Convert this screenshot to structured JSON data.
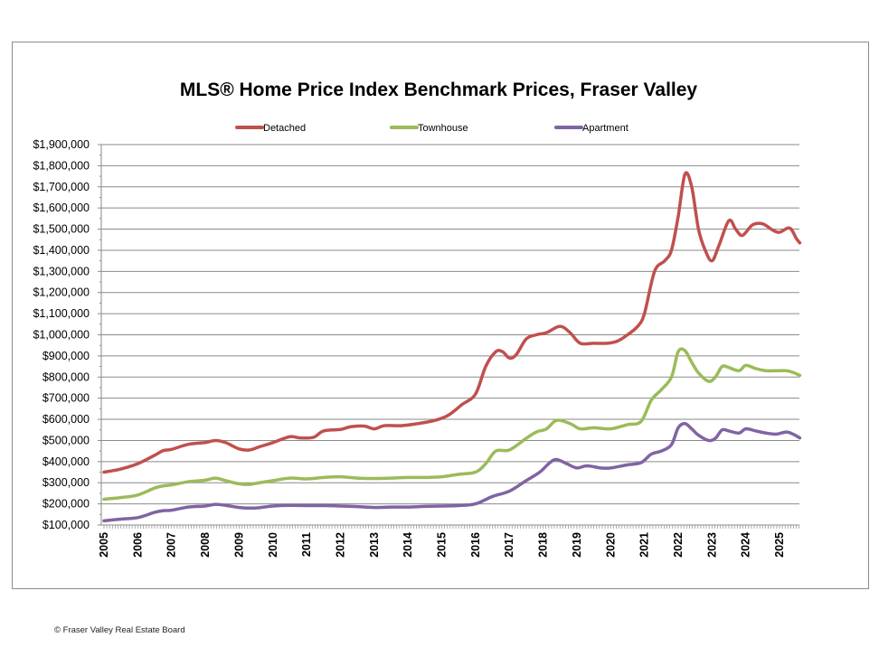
{
  "footer": {
    "copyright": "© Fraser Valley Real Estate Board"
  },
  "chart_data": {
    "type": "line",
    "title": "MLS® Home Price Index Benchmark Prices, Fraser Valley",
    "xlabel": "",
    "ylabel": "",
    "ylim": [
      100000,
      1900000
    ],
    "xlim": [
      2005,
      2025.6
    ],
    "grid": true,
    "legend_position": "top-center",
    "y_ticks": [
      100000,
      200000,
      300000,
      400000,
      500000,
      600000,
      700000,
      800000,
      900000,
      1000000,
      1100000,
      1200000,
      1300000,
      1400000,
      1500000,
      1600000,
      1700000,
      1800000,
      1900000
    ],
    "y_tick_labels": [
      "$100,000",
      "$200,000",
      "$300,000",
      "$400,000",
      "$500,000",
      "$600,000",
      "$700,000",
      "$800,000",
      "$900,000",
      "$1,000,000",
      "$1,100,000",
      "$1,200,000",
      "$1,300,000",
      "$1,400,000",
      "$1,500,000",
      "$1,600,000",
      "$1,700,000",
      "$1,800,000",
      "$1,900,000"
    ],
    "x_ticks": [
      2005,
      2006,
      2007,
      2008,
      2009,
      2010,
      2011,
      2012,
      2013,
      2014,
      2015,
      2016,
      2017,
      2018,
      2019,
      2020,
      2021,
      2022,
      2023,
      2024,
      2025
    ],
    "x_tick_labels": [
      "2005",
      "2006",
      "2007",
      "2008",
      "2009",
      "2010",
      "2011",
      "2012",
      "2013",
      "2014",
      "2015",
      "2016",
      "2017",
      "2018",
      "2019",
      "2020",
      "2021",
      "2022",
      "2023",
      "2024",
      "2025"
    ],
    "series": [
      {
        "name": "Detached",
        "color": "#c0504d",
        "x": [
          2005.0,
          2005.5,
          2006.0,
          2006.5,
          2006.75,
          2007.0,
          2007.5,
          2008.0,
          2008.3,
          2008.6,
          2009.0,
          2009.3,
          2009.6,
          2010.0,
          2010.5,
          2010.8,
          2011.2,
          2011.5,
          2012.0,
          2012.3,
          2012.7,
          2013.0,
          2013.3,
          2013.8,
          2014.3,
          2014.8,
          2015.2,
          2015.6,
          2016.0,
          2016.3,
          2016.6,
          2016.8,
          2017.0,
          2017.2,
          2017.5,
          2017.8,
          2018.1,
          2018.5,
          2018.8,
          2019.1,
          2019.5,
          2019.9,
          2020.2,
          2020.5,
          2020.8,
          2021.0,
          2021.3,
          2021.6,
          2021.8,
          2022.0,
          2022.2,
          2022.4,
          2022.6,
          2022.8,
          2023.0,
          2023.2,
          2023.5,
          2023.7,
          2023.9,
          2024.2,
          2024.5,
          2024.8,
          2025.0,
          2025.3,
          2025.5,
          2025.6
        ],
        "values": [
          350000,
          365000,
          390000,
          430000,
          452000,
          458000,
          482000,
          490000,
          500000,
          490000,
          460000,
          455000,
          470000,
          490000,
          518000,
          512000,
          515000,
          545000,
          552000,
          565000,
          568000,
          555000,
          570000,
          570000,
          580000,
          595000,
          620000,
          670000,
          720000,
          850000,
          920000,
          920000,
          890000,
          905000,
          980000,
          1000000,
          1010000,
          1040000,
          1010000,
          960000,
          960000,
          960000,
          970000,
          1000000,
          1040000,
          1100000,
          1300000,
          1350000,
          1400000,
          1560000,
          1760000,
          1700000,
          1500000,
          1400000,
          1350000,
          1420000,
          1540000,
          1500000,
          1470000,
          1520000,
          1525000,
          1495000,
          1485000,
          1505000,
          1455000,
          1435000
        ]
      },
      {
        "name": "Townhouse",
        "color": "#9bbb59",
        "x": [
          2005.0,
          2005.5,
          2006.0,
          2006.5,
          2006.75,
          2007.0,
          2007.5,
          2008.0,
          2008.3,
          2008.6,
          2009.0,
          2009.3,
          2009.6,
          2010.0,
          2010.5,
          2011.0,
          2011.5,
          2012.0,
          2012.5,
          2013.0,
          2013.5,
          2014.0,
          2014.5,
          2015.0,
          2015.5,
          2016.0,
          2016.3,
          2016.6,
          2017.0,
          2017.5,
          2017.8,
          2018.1,
          2018.4,
          2018.8,
          2019.1,
          2019.5,
          2020.0,
          2020.5,
          2020.9,
          2021.2,
          2021.5,
          2021.8,
          2022.0,
          2022.2,
          2022.4,
          2022.6,
          2022.9,
          2023.1,
          2023.3,
          2023.5,
          2023.8,
          2024.0,
          2024.3,
          2024.6,
          2024.9,
          2025.2,
          2025.4,
          2025.6
        ],
        "values": [
          222000,
          230000,
          242000,
          275000,
          285000,
          290000,
          305000,
          312000,
          322000,
          310000,
          295000,
          292000,
          300000,
          310000,
          322000,
          318000,
          325000,
          328000,
          322000,
          320000,
          322000,
          325000,
          325000,
          328000,
          340000,
          350000,
          390000,
          450000,
          455000,
          510000,
          540000,
          555000,
          595000,
          580000,
          555000,
          560000,
          555000,
          575000,
          590000,
          690000,
          740000,
          800000,
          920000,
          925000,
          870000,
          820000,
          780000,
          800000,
          850000,
          845000,
          830000,
          855000,
          840000,
          830000,
          830000,
          830000,
          822000,
          808000
        ]
      },
      {
        "name": "Apartment",
        "color": "#8064a2",
        "x": [
          2005.0,
          2005.5,
          2006.0,
          2006.5,
          2006.75,
          2007.0,
          2007.5,
          2008.0,
          2008.3,
          2008.6,
          2009.0,
          2009.3,
          2009.6,
          2010.0,
          2010.5,
          2011.0,
          2011.5,
          2012.0,
          2012.5,
          2013.0,
          2013.5,
          2014.0,
          2014.5,
          2015.0,
          2015.5,
          2016.0,
          2016.5,
          2017.0,
          2017.5,
          2017.9,
          2018.2,
          2018.4,
          2018.7,
          2019.0,
          2019.3,
          2019.7,
          2020.0,
          2020.5,
          2020.9,
          2021.2,
          2021.5,
          2021.8,
          2022.0,
          2022.2,
          2022.4,
          2022.6,
          2022.9,
          2023.1,
          2023.3,
          2023.5,
          2023.8,
          2024.0,
          2024.3,
          2024.6,
          2024.9,
          2025.2,
          2025.4,
          2025.6
        ],
        "values": [
          120000,
          128000,
          135000,
          160000,
          168000,
          170000,
          185000,
          190000,
          198000,
          193000,
          183000,
          180000,
          182000,
          190000,
          193000,
          192000,
          192000,
          190000,
          187000,
          183000,
          185000,
          185000,
          188000,
          190000,
          192000,
          200000,
          235000,
          260000,
          310000,
          350000,
          395000,
          410000,
          390000,
          370000,
          380000,
          370000,
          370000,
          385000,
          395000,
          435000,
          450000,
          480000,
          560000,
          580000,
          555000,
          525000,
          500000,
          510000,
          550000,
          545000,
          535000,
          555000,
          545000,
          535000,
          530000,
          540000,
          530000,
          512000
        ]
      }
    ]
  }
}
